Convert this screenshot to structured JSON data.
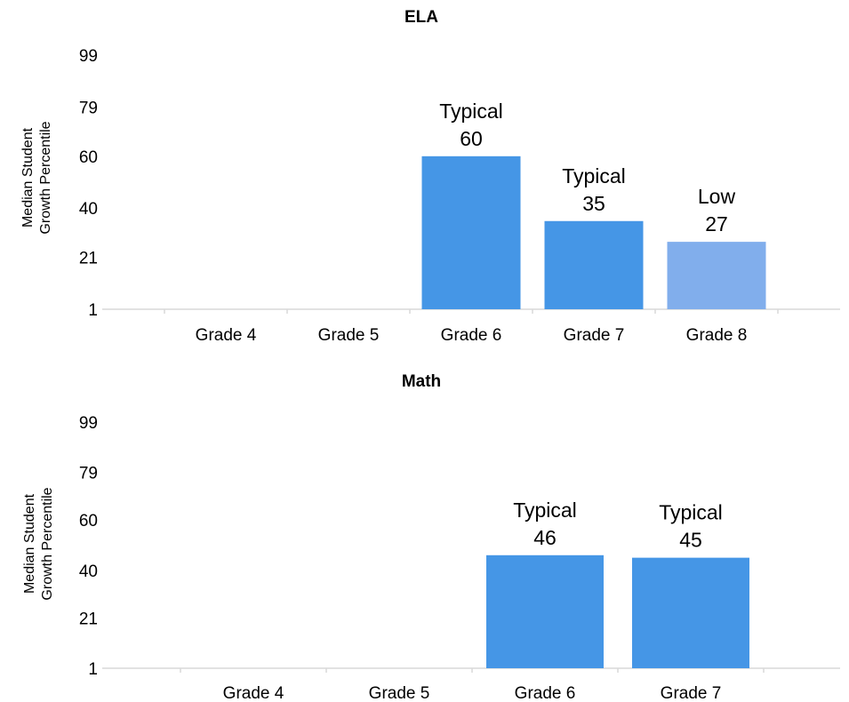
{
  "chart_data": [
    {
      "type": "bar",
      "title": "ELA",
      "ylabel": [
        "Median Student",
        "Growth Percentile"
      ],
      "yticks": [
        1,
        21,
        40,
        60,
        79,
        99
      ],
      "ylim": [
        1,
        99
      ],
      "categories": [
        "Grade 4",
        "Grade 5",
        "Grade 6",
        "Grade 7",
        "Grade 8"
      ],
      "values": [
        null,
        null,
        60,
        35,
        27
      ],
      "labels": [
        "",
        "",
        "Typical",
        "Typical",
        "Low"
      ],
      "colors": [
        "#4596e6",
        "#4596e6",
        "#4596e6",
        "#4596e6",
        "#81aeec"
      ],
      "grid": false
    },
    {
      "type": "bar",
      "title": "Math",
      "ylabel": [
        "Median Student",
        "Growth Percentile"
      ],
      "yticks": [
        1,
        21,
        40,
        60,
        79,
        99
      ],
      "ylim": [
        1,
        99
      ],
      "categories": [
        "Grade 4",
        "Grade 5",
        "Grade 6",
        "Grade 7"
      ],
      "values": [
        null,
        null,
        46,
        45
      ],
      "labels": [
        "",
        "",
        "Typical",
        "Typical"
      ],
      "colors": [
        "#4596e6",
        "#4596e6",
        "#4596e6",
        "#4596e6"
      ],
      "grid": false
    }
  ]
}
